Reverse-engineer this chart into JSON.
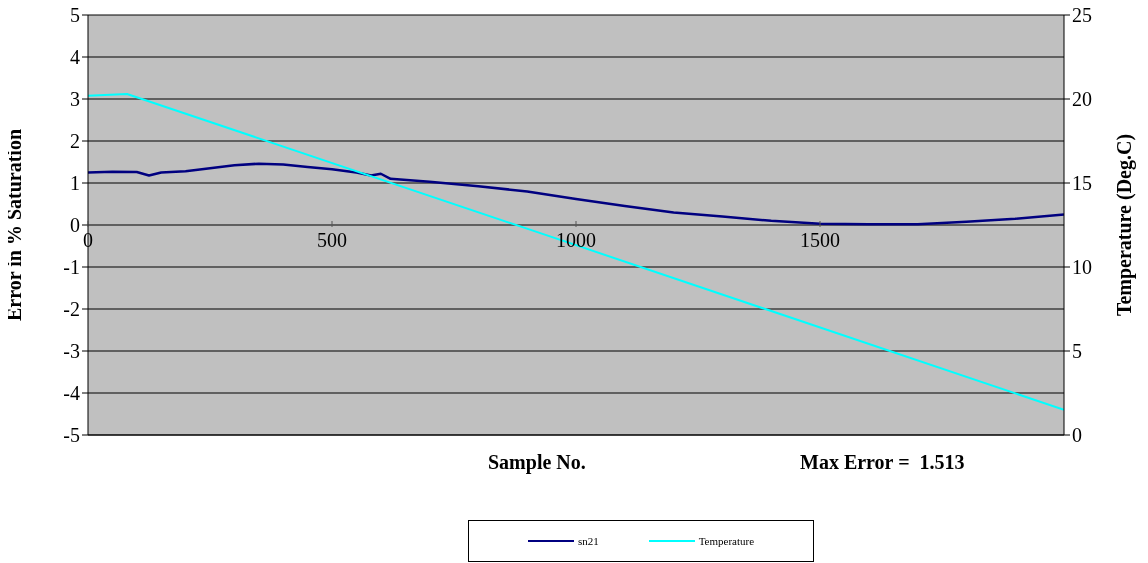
{
  "chart_data": {
    "type": "line",
    "xlabel": "Sample No.",
    "ylabel": "Error in % Saturation",
    "y2label": "Temperature (Deg.C)",
    "annotations": [
      "Max Error =  1.513"
    ],
    "xlim": [
      0,
      2000
    ],
    "xticks": [
      0,
      500,
      1000,
      1500
    ],
    "ylim": [
      -5,
      5
    ],
    "yticks": [
      -5,
      -4,
      -3,
      -2,
      -1,
      0,
      1,
      2,
      3,
      4,
      5
    ],
    "y2lim": [
      0,
      25
    ],
    "y2ticks": [
      0,
      5,
      10,
      15,
      20,
      25
    ],
    "grid": "y",
    "legend": "bottom",
    "marker": "none",
    "line_style": "solid",
    "series": [
      {
        "name": "sn21",
        "color": "#000080",
        "x": [
          0,
          50,
          100,
          125,
          150,
          200,
          250,
          300,
          350,
          400,
          450,
          500,
          550,
          580,
          600,
          620,
          700,
          800,
          900,
          1000,
          1100,
          1200,
          1300,
          1400,
          1500,
          1600,
          1700,
          1800,
          1900,
          2000
        ],
        "values": [
          1.25,
          1.27,
          1.26,
          1.18,
          1.25,
          1.28,
          1.35,
          1.42,
          1.46,
          1.44,
          1.38,
          1.33,
          1.25,
          1.18,
          1.22,
          1.1,
          1.03,
          0.92,
          0.8,
          0.62,
          0.45,
          0.3,
          0.2,
          0.1,
          0.03,
          0.02,
          0.02,
          0.08,
          0.15,
          0.25
        ]
      },
      {
        "name": "Temperature",
        "color": "#00ffff",
        "axis": "y2",
        "x": [
          0,
          80,
          1000,
          2000
        ],
        "values": [
          20.2,
          20.3,
          11.3,
          1.5
        ]
      }
    ]
  }
}
